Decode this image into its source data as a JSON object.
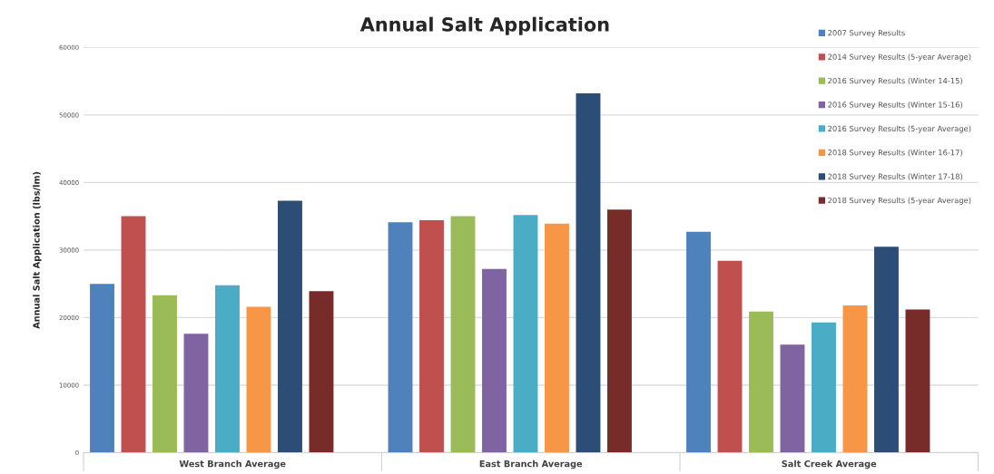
{
  "chart_data": {
    "type": "bar",
    "title": "Annual Salt Application",
    "ylabel": "Annual Salt Application (lbs/lm)",
    "categories": [
      "West Branch Average",
      "East Branch Average",
      "Salt Creek Average"
    ],
    "series": [
      {
        "name": "2007 Survey Results",
        "color": "#4f81bd",
        "values": [
          25000,
          34100,
          32700
        ]
      },
      {
        "name": "2014 Survey Results (5-year Average)",
        "color": "#c0504d",
        "values": [
          35000,
          34400,
          28400
        ]
      },
      {
        "name": "2016 Survey Results (Winter 14-15)",
        "color": "#9bbb59",
        "values": [
          23300,
          35000,
          20900
        ]
      },
      {
        "name": "2016 Survey Results (Winter 15-16)",
        "color": "#8064a2",
        "values": [
          17600,
          27200,
          16000
        ]
      },
      {
        "name": "2016 Survey Results (5-year Average)",
        "color": "#4bacc6",
        "values": [
          24800,
          35200,
          19300
        ]
      },
      {
        "name": "2018 Survey Results (Winter 16-17)",
        "color": "#f79646",
        "values": [
          21600,
          33900,
          21800
        ]
      },
      {
        "name": "2018 Survey Results (Winter 17-18)",
        "color": "#2c4d75",
        "values": [
          37300,
          53200,
          30500
        ]
      },
      {
        "name": "2018 Survey Results (5-year Average)",
        "color": "#772c2a",
        "values": [
          23900,
          36000,
          21200
        ]
      }
    ],
    "ylim": [
      0,
      60000
    ],
    "yticks": [
      0,
      10000,
      20000,
      30000,
      40000,
      50000,
      60000
    ],
    "grid": "y",
    "legend": "top right"
  }
}
